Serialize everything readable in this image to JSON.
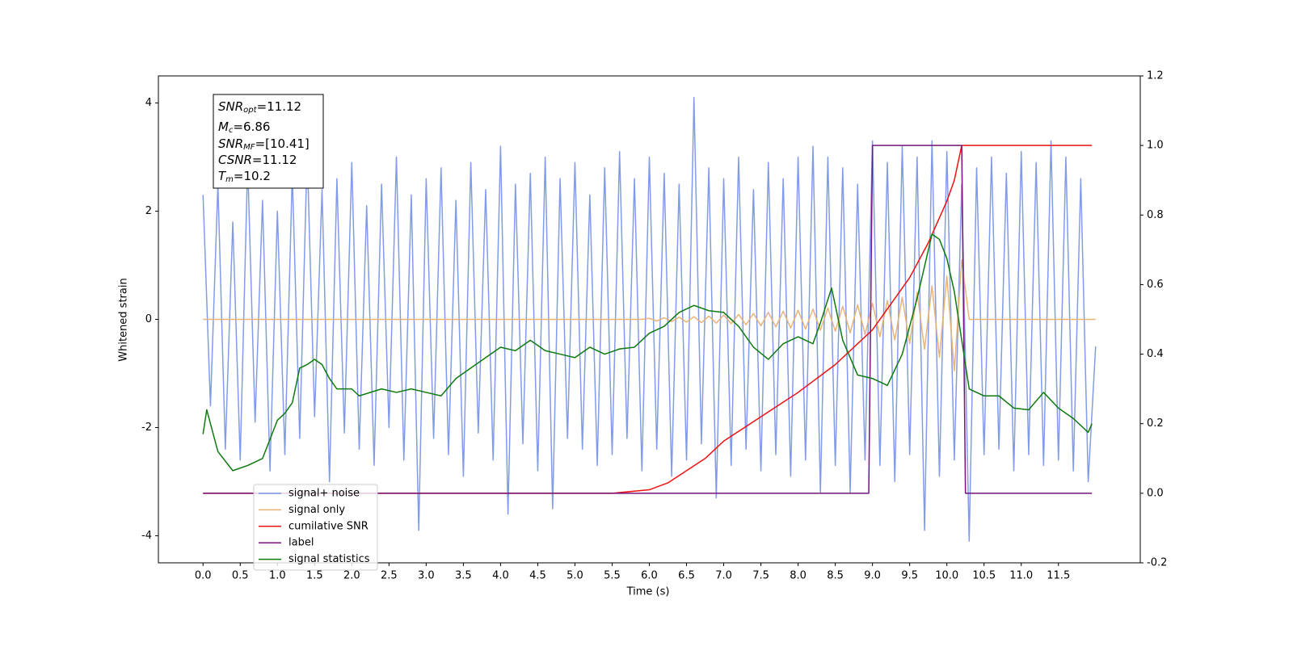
{
  "chart_data": {
    "type": "line",
    "xlabel": "Time (s)",
    "ylabel": "Whitened strain",
    "xlim": [
      -0.6,
      12.6
    ],
    "xticks": [
      {
        "value": 0,
        "label": "0.0"
      },
      0.5,
      {
        "value": 1,
        "label": "1.0"
      },
      1.5,
      {
        "value": 2,
        "label": "2.0"
      },
      2.5,
      {
        "value": 3,
        "label": "3.0"
      },
      3.5,
      {
        "value": 4,
        "label": "4.0"
      },
      4.5,
      {
        "value": 5,
        "label": "5.0"
      },
      5.5,
      {
        "value": 6,
        "label": "6.0"
      },
      6.5,
      {
        "value": 7,
        "label": "7.0"
      },
      7.5,
      {
        "value": 8,
        "label": "8.0"
      },
      8.5,
      {
        "value": 9,
        "label": "9.0"
      },
      9.5,
      {
        "value": 10,
        "label": "10.0"
      },
      10.5,
      {
        "value": 11,
        "label": "11.0"
      },
      11.5
    ],
    "ylim": [
      -4.5,
      4.5
    ],
    "yticks": [
      -4,
      -2,
      0,
      2,
      4
    ],
    "y2lim": [
      -0.2,
      1.2
    ],
    "y2ticks": [
      -0.2,
      {
        "value": 0,
        "label": "0.0"
      },
      0.2,
      0.4,
      0.6,
      0.8,
      {
        "value": 1,
        "label": "1.0"
      },
      1.2
    ],
    "legend": "lower left",
    "annotation": [
      {
        "main": "SNR",
        "sub": "opt",
        "rest": "=11.12"
      },
      {
        "main": "M",
        "sub": "c",
        "rest": "=6.86"
      },
      {
        "main": "SNR",
        "sub": "MF",
        "rest": "=[10.41]"
      },
      {
        "main": "CSNR",
        "sub": "",
        "rest": "=11.12"
      },
      {
        "main": "T",
        "sub": "m",
        "rest": "=10.2"
      }
    ],
    "x": [
      0,
      0.1,
      0.2,
      0.3,
      0.4,
      0.5,
      0.6,
      0.7,
      0.8,
      0.9,
      1,
      1.1,
      1.2,
      1.3,
      1.4,
      1.5,
      1.6,
      1.7,
      1.8,
      1.9,
      2,
      2.1,
      2.2,
      2.3,
      2.4,
      2.5,
      2.6,
      2.7,
      2.8,
      2.9,
      3,
      3.1,
      3.2,
      3.3,
      3.4,
      3.5,
      3.6,
      3.7,
      3.8,
      3.9,
      4,
      4.1,
      4.2,
      4.3,
      4.4,
      4.5,
      4.6,
      4.7,
      4.8,
      4.9,
      5,
      5.1,
      5.2,
      5.3,
      5.4,
      5.5,
      5.6,
      5.7,
      5.8,
      5.9,
      6,
      6.1,
      6.2,
      6.3,
      6.4,
      6.5,
      6.6,
      6.7,
      6.8,
      6.9,
      7,
      7.1,
      7.2,
      7.3,
      7.4,
      7.5,
      7.6,
      7.7,
      7.8,
      7.9,
      8,
      8.1,
      8.2,
      8.3,
      8.4,
      8.5,
      8.6,
      8.7,
      8.8,
      8.9,
      9,
      9.1,
      9.2,
      9.3,
      9.4,
      9.5,
      9.6,
      9.7,
      9.8,
      9.9,
      10,
      10.1,
      10.2,
      10.3,
      10.4,
      10.5,
      10.6,
      10.7,
      10.8,
      10.9,
      11,
      11.1,
      11.2,
      11.3,
      11.4,
      11.5,
      11.6,
      11.7,
      11.8,
      11.9,
      12
    ],
    "series": [
      {
        "name": "signal+ noise",
        "color": "#7b96e8",
        "values": [
          2.3,
          -1.6,
          2.5,
          -2.4,
          1.8,
          -2.6,
          2.9,
          -1.9,
          2.2,
          -2.8,
          2.0,
          -2.5,
          2.7,
          -2.2,
          3.1,
          -1.8,
          2.4,
          -3.0,
          2.6,
          -2.1,
          2.9,
          -2.4,
          2.1,
          -2.7,
          2.5,
          -2.0,
          3.0,
          -2.6,
          2.3,
          -3.9,
          2.6,
          -2.2,
          2.8,
          -2.5,
          2.2,
          -2.9,
          2.9,
          -2.1,
          2.4,
          -2.6,
          3.2,
          -3.6,
          2.5,
          -2.3,
          2.7,
          -2.8,
          3.0,
          -3.5,
          2.6,
          -2.2,
          2.9,
          -2.4,
          2.3,
          -2.7,
          2.8,
          -2.5,
          3.1,
          -2.2,
          2.6,
          -2.8,
          3.0,
          -2.4,
          2.7,
          -2.9,
          2.5,
          -2.6,
          4.1,
          -2.3,
          2.8,
          -3.3,
          2.6,
          -2.7,
          3.0,
          -2.4,
          2.4,
          -2.8,
          2.9,
          -2.5,
          2.6,
          -2.9,
          3.0,
          -2.6,
          3.2,
          -3.2,
          3.0,
          -2.7,
          2.8,
          -3.2,
          2.5,
          -2.6,
          3.3,
          -2.7,
          2.9,
          -3.0,
          3.2,
          -2.5,
          3.0,
          -3.9,
          3.3,
          -2.9,
          3.1,
          -2.6,
          2.5,
          -4.1,
          2.8,
          -2.5,
          3.0,
          -2.4,
          2.7,
          -2.8,
          3.1,
          -2.5,
          2.9,
          -2.7,
          3.3,
          -2.6,
          3.0,
          -2.8,
          2.6,
          -3.0,
          -0.5
        ]
      },
      {
        "name": "signal only",
        "color": "#e8b070",
        "values": [
          0,
          0,
          0,
          0,
          0,
          0,
          0,
          0,
          0,
          0,
          0,
          0,
          0,
          0,
          0,
          0,
          0,
          0,
          0,
          0,
          0,
          0,
          0,
          0,
          0,
          0,
          0,
          0,
          0,
          0,
          0,
          0,
          0,
          0,
          0,
          0,
          0,
          0,
          0,
          0,
          0,
          0,
          0,
          0,
          0,
          0,
          0,
          0,
          0,
          0,
          0,
          0,
          0,
          0,
          0,
          0,
          0,
          0,
          0,
          0,
          0.02,
          -0.03,
          0.03,
          -0.04,
          0.04,
          -0.05,
          0.05,
          -0.06,
          0.06,
          -0.07,
          0.08,
          -0.08,
          0.09,
          -0.1,
          0.11,
          -0.12,
          0.13,
          -0.14,
          0.15,
          -0.16,
          0.17,
          -0.18,
          0.19,
          -0.2,
          0.21,
          -0.22,
          0.24,
          -0.25,
          0.27,
          -0.28,
          0.3,
          -0.32,
          0.35,
          -0.38,
          0.41,
          -0.45,
          0.5,
          -0.55,
          0.62,
          -0.7,
          0.8,
          -0.95,
          1.1,
          0,
          0,
          0,
          0,
          0,
          0,
          0,
          0,
          0,
          0,
          0,
          0,
          0,
          0,
          0,
          0,
          0,
          0
        ]
      },
      {
        "name": "cumilative SNR",
        "color": "#ee1111",
        "axis": "y2",
        "x": [
          0,
          5,
          5.5,
          6,
          6.25,
          6.5,
          6.75,
          7,
          7.5,
          8,
          8.5,
          9,
          9.5,
          9.75,
          10,
          10.1,
          10.2,
          11.95
        ],
        "values": [
          0,
          0,
          0,
          0.01,
          0.03,
          0.065,
          0.1,
          0.15,
          0.22,
          0.29,
          0.37,
          0.47,
          0.62,
          0.72,
          0.84,
          0.9,
          1,
          1
        ]
      },
      {
        "name": "label",
        "color": "#75147c",
        "axis": "y2",
        "x": [
          0,
          8.95,
          9,
          10.2,
          10.25,
          11.95
        ],
        "values": [
          0,
          0,
          1,
          1,
          0,
          0
        ]
      },
      {
        "name": "signal statistics",
        "color": "#0e7a0e",
        "axis": "y2",
        "x": [
          0,
          0.05,
          0.2,
          0.4,
          0.6,
          0.8,
          1,
          1.1,
          1.2,
          1.3,
          1.4,
          1.5,
          1.6,
          1.7,
          1.8,
          2,
          2.1,
          2.4,
          2.6,
          2.8,
          3,
          3.2,
          3.4,
          3.6,
          3.8,
          4,
          4.2,
          4.4,
          4.6,
          4.8,
          5,
          5.2,
          5.4,
          5.6,
          5.8,
          6,
          6.2,
          6.4,
          6.6,
          6.8,
          7,
          7.2,
          7.4,
          7.6,
          7.8,
          8,
          8.2,
          8.3,
          8.45,
          8.6,
          8.8,
          9,
          9.2,
          9.4,
          9.6,
          9.8,
          9.9,
          10,
          10.1,
          10.2,
          10.3,
          10.5,
          10.7,
          10.9,
          11.1,
          11.3,
          11.5,
          11.7,
          11.9,
          11.95
        ],
        "values": [
          0.17,
          0.24,
          0.12,
          0.065,
          0.08,
          0.1,
          0.21,
          0.23,
          0.26,
          0.36,
          0.37,
          0.385,
          0.37,
          0.33,
          0.3,
          0.3,
          0.28,
          0.3,
          0.29,
          0.3,
          0.29,
          0.28,
          0.33,
          0.36,
          0.39,
          0.42,
          0.41,
          0.44,
          0.41,
          0.4,
          0.39,
          0.42,
          0.4,
          0.415,
          0.42,
          0.46,
          0.48,
          0.52,
          0.54,
          0.525,
          0.52,
          0.48,
          0.42,
          0.385,
          0.43,
          0.45,
          0.43,
          0.49,
          0.59,
          0.44,
          0.34,
          0.33,
          0.31,
          0.4,
          0.56,
          0.745,
          0.73,
          0.675,
          0.58,
          0.44,
          0.3,
          0.28,
          0.28,
          0.245,
          0.24,
          0.29,
          0.245,
          0.215,
          0.175,
          0.2
        ]
      }
    ]
  }
}
